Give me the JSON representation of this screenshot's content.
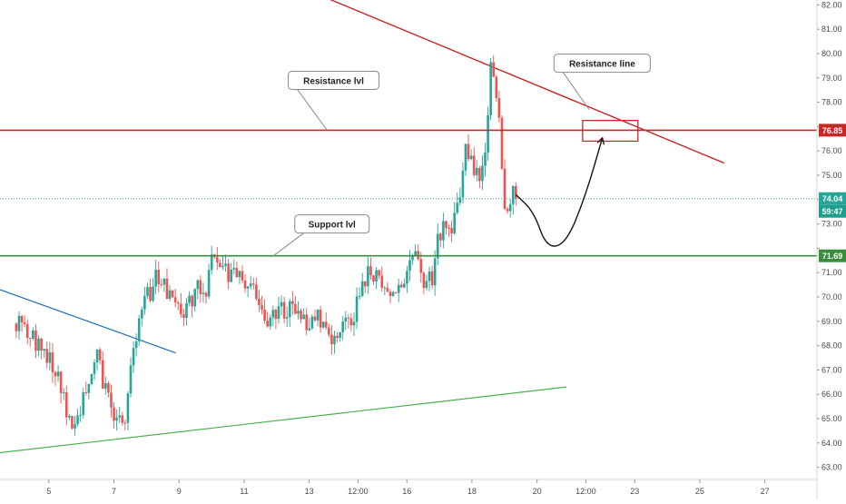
{
  "chart_data": {
    "type": "candlestick",
    "y_axis": {
      "position": "right",
      "min": 62.5,
      "max": 82.2,
      "ticks": [
        63.0,
        64.0,
        65.0,
        66.0,
        67.0,
        68.0,
        69.0,
        70.0,
        71.0,
        72.0,
        73.0,
        74.0,
        75.0,
        76.0,
        77.0,
        78.0,
        79.0,
        80.0,
        81.0,
        82.0
      ],
      "tick_labels": [
        "63.00",
        "64.00",
        "65.00",
        "66.00",
        "67.00",
        "68.00",
        "69.00",
        "70.00",
        "71.00",
        "72.00",
        "73.00",
        "74.00",
        "75.00",
        "76.00",
        "77.00",
        "78.00",
        "79.00",
        "80.00",
        "81.00",
        "82.00"
      ]
    },
    "x_axis": {
      "min": 3.5,
      "max": 28.6,
      "ticks": [
        {
          "pos": 5.0,
          "label": "5"
        },
        {
          "pos": 7.0,
          "label": "7"
        },
        {
          "pos": 9.0,
          "label": "9"
        },
        {
          "pos": 11.0,
          "label": "11"
        },
        {
          "pos": 13.0,
          "label": "13"
        },
        {
          "pos": 14.5,
          "label": "12:00"
        },
        {
          "pos": 16.0,
          "label": "16"
        },
        {
          "pos": 18.0,
          "label": "18"
        },
        {
          "pos": 20.0,
          "label": "20"
        },
        {
          "pos": 21.5,
          "label": "12:00"
        },
        {
          "pos": 23.0,
          "label": "23"
        },
        {
          "pos": 25.0,
          "label": "25"
        },
        {
          "pos": 27.0,
          "label": "27"
        }
      ]
    },
    "grid": false,
    "colors": {
      "up": "#26a69a",
      "down": "#ef5350",
      "resistance": "#c62828",
      "support": "#388e3c",
      "blue_trend": "#1e6fb8",
      "green_trend": "#4caf50",
      "arrow": "#111111",
      "current": "#26a69a",
      "axis_text": "#4a4a4a"
    },
    "price_path": [
      [
        3.5,
        69.6
      ],
      [
        3.9,
        69.0
      ],
      [
        4.3,
        68.6
      ],
      [
        4.7,
        68.0
      ],
      [
        5.0,
        67.4
      ],
      [
        5.3,
        66.9
      ],
      [
        5.5,
        65.3
      ],
      [
        5.8,
        64.9
      ],
      [
        6.0,
        65.7
      ],
      [
        6.3,
        67.0
      ],
      [
        6.5,
        67.6
      ],
      [
        6.7,
        66.4
      ],
      [
        6.9,
        65.4
      ],
      [
        7.2,
        64.9
      ],
      [
        7.4,
        65.2
      ],
      [
        7.5,
        67.0
      ],
      [
        7.7,
        68.6
      ],
      [
        7.9,
        70.2
      ],
      [
        8.1,
        70.0
      ],
      [
        8.3,
        70.9
      ],
      [
        8.5,
        70.4
      ],
      [
        8.8,
        69.9
      ],
      [
        9.1,
        69.3
      ],
      [
        9.3,
        69.7
      ],
      [
        9.6,
        70.6
      ],
      [
        9.8,
        70.2
      ],
      [
        10.0,
        71.7
      ],
      [
        10.3,
        71.4
      ],
      [
        10.6,
        70.7
      ],
      [
        10.9,
        70.9
      ],
      [
        11.2,
        70.4
      ],
      [
        11.4,
        69.7
      ],
      [
        11.7,
        69.1
      ],
      [
        12.0,
        69.3
      ],
      [
        12.3,
        69.6
      ],
      [
        12.6,
        69.1
      ],
      [
        12.9,
        68.9
      ],
      [
        13.2,
        69.2
      ],
      [
        13.4,
        68.9
      ],
      [
        13.7,
        68.4
      ],
      [
        14.0,
        68.6
      ],
      [
        14.3,
        69.0
      ],
      [
        14.6,
        70.3
      ],
      [
        14.9,
        71.1
      ],
      [
        15.2,
        70.6
      ],
      [
        15.5,
        70.2
      ],
      [
        15.8,
        70.1
      ],
      [
        16.1,
        71.2
      ],
      [
        16.3,
        71.5
      ],
      [
        16.6,
        70.3
      ],
      [
        16.8,
        71.0
      ],
      [
        17.0,
        72.6
      ],
      [
        17.2,
        73.1
      ],
      [
        17.4,
        72.7
      ],
      [
        17.6,
        74.1
      ],
      [
        17.8,
        76.2
      ],
      [
        18.0,
        75.3
      ],
      [
        18.2,
        75.0
      ],
      [
        18.4,
        76.2
      ],
      [
        18.6,
        79.8
      ],
      [
        18.7,
        78.8
      ],
      [
        18.8,
        78.4
      ],
      [
        18.9,
        76.0
      ],
      [
        19.0,
        73.8
      ],
      [
        19.1,
        73.4
      ],
      [
        19.2,
        74.3
      ],
      [
        19.35,
        74.04
      ]
    ],
    "candles_from": 4.0,
    "candles_to": 19.35,
    "candle_count": 180,
    "current_price": {
      "value": 74.04,
      "label": "74.04",
      "countdown": "59:47"
    },
    "levels": [
      {
        "name": "resistance",
        "value": 76.85,
        "label": "76.85",
        "callout": "Resistance lvl",
        "callout_x": 13.75,
        "callout_y": 78.9,
        "anchor_x": 13.55
      },
      {
        "name": "support",
        "value": 71.69,
        "label": "71.69",
        "callout": "Support lvl",
        "callout_x": 13.7,
        "callout_y": 73.0,
        "anchor_x": 11.9
      }
    ],
    "trendlines": [
      {
        "name": "resistance-line",
        "x1": 13.5,
        "y1": 82.3,
        "x2": 25.75,
        "y2": 75.5,
        "color": "#c62828",
        "width": 1.4
      },
      {
        "name": "blue-trend",
        "x1": 3.5,
        "y1": 70.3,
        "x2": 8.9,
        "y2": 67.7,
        "color": "#1e6fb8",
        "width": 1.2
      },
      {
        "name": "green-trend",
        "x1": 3.5,
        "y1": 63.6,
        "x2": 20.9,
        "y2": 66.3,
        "color": "#4caf50",
        "width": 1.2
      }
    ],
    "callout_line": {
      "label": "Resistance line",
      "box_x": 22.0,
      "box_y": 79.6,
      "anchor_x": 21.6,
      "anchor_y": 77.7
    },
    "target_zone": {
      "x1": 21.4,
      "x2": 23.1,
      "y1": 77.25,
      "y2": 76.4
    },
    "projection_path": [
      [
        19.35,
        74.2
      ],
      [
        19.9,
        73.5
      ],
      [
        20.3,
        72.0
      ],
      [
        20.9,
        72.2
      ],
      [
        21.5,
        74.2
      ],
      [
        22.0,
        76.5
      ]
    ]
  }
}
